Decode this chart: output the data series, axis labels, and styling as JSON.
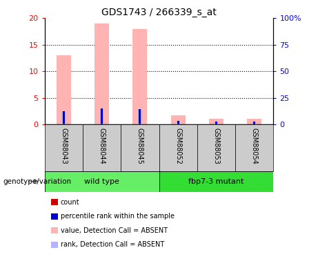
{
  "title": "GDS1743 / 266339_s_at",
  "samples": [
    "GSM88043",
    "GSM88044",
    "GSM88045",
    "GSM88052",
    "GSM88053",
    "GSM88054"
  ],
  "value_absent": [
    13.0,
    19.0,
    18.0,
    1.7,
    1.0,
    1.0
  ],
  "rank_absent": [
    2.5,
    3.0,
    2.8,
    0.6,
    0.4,
    0.4
  ],
  "count_red": [
    0.12,
    0.12,
    0.12,
    0.12,
    0.12,
    0.12
  ],
  "percentile_blue": [
    2.4,
    2.9,
    2.7,
    0.5,
    0.35,
    0.35
  ],
  "ylim_left": [
    0,
    20
  ],
  "ylim_right": [
    0,
    100
  ],
  "yticks_left": [
    0,
    5,
    10,
    15,
    20
  ],
  "yticks_right": [
    0,
    25,
    50,
    75,
    100
  ],
  "yticklabels_right": [
    "0",
    "25",
    "50",
    "75",
    "100%"
  ],
  "pink_color": "#ffb3b3",
  "lightblue_color": "#b3b3ff",
  "red_color": "#cc0000",
  "blue_color": "#0000cc",
  "sample_bg_color": "#cccccc",
  "group_bg_color_wt": "#66ee66",
  "group_bg_color_mut": "#33dd33",
  "title_fontsize": 10,
  "tick_fontsize": 8,
  "label_fontsize": 7,
  "legend_fontsize": 7,
  "wt_label": "wild type",
  "mut_label": "fbp7-3 mutant",
  "genotype_label": "genotype/variation",
  "legend_items": [
    [
      "#cc0000",
      "count"
    ],
    [
      "#0000cc",
      "percentile rank within the sample"
    ],
    [
      "#ffb3b3",
      "value, Detection Call = ABSENT"
    ],
    [
      "#b3b3ff",
      "rank, Detection Call = ABSENT"
    ]
  ]
}
